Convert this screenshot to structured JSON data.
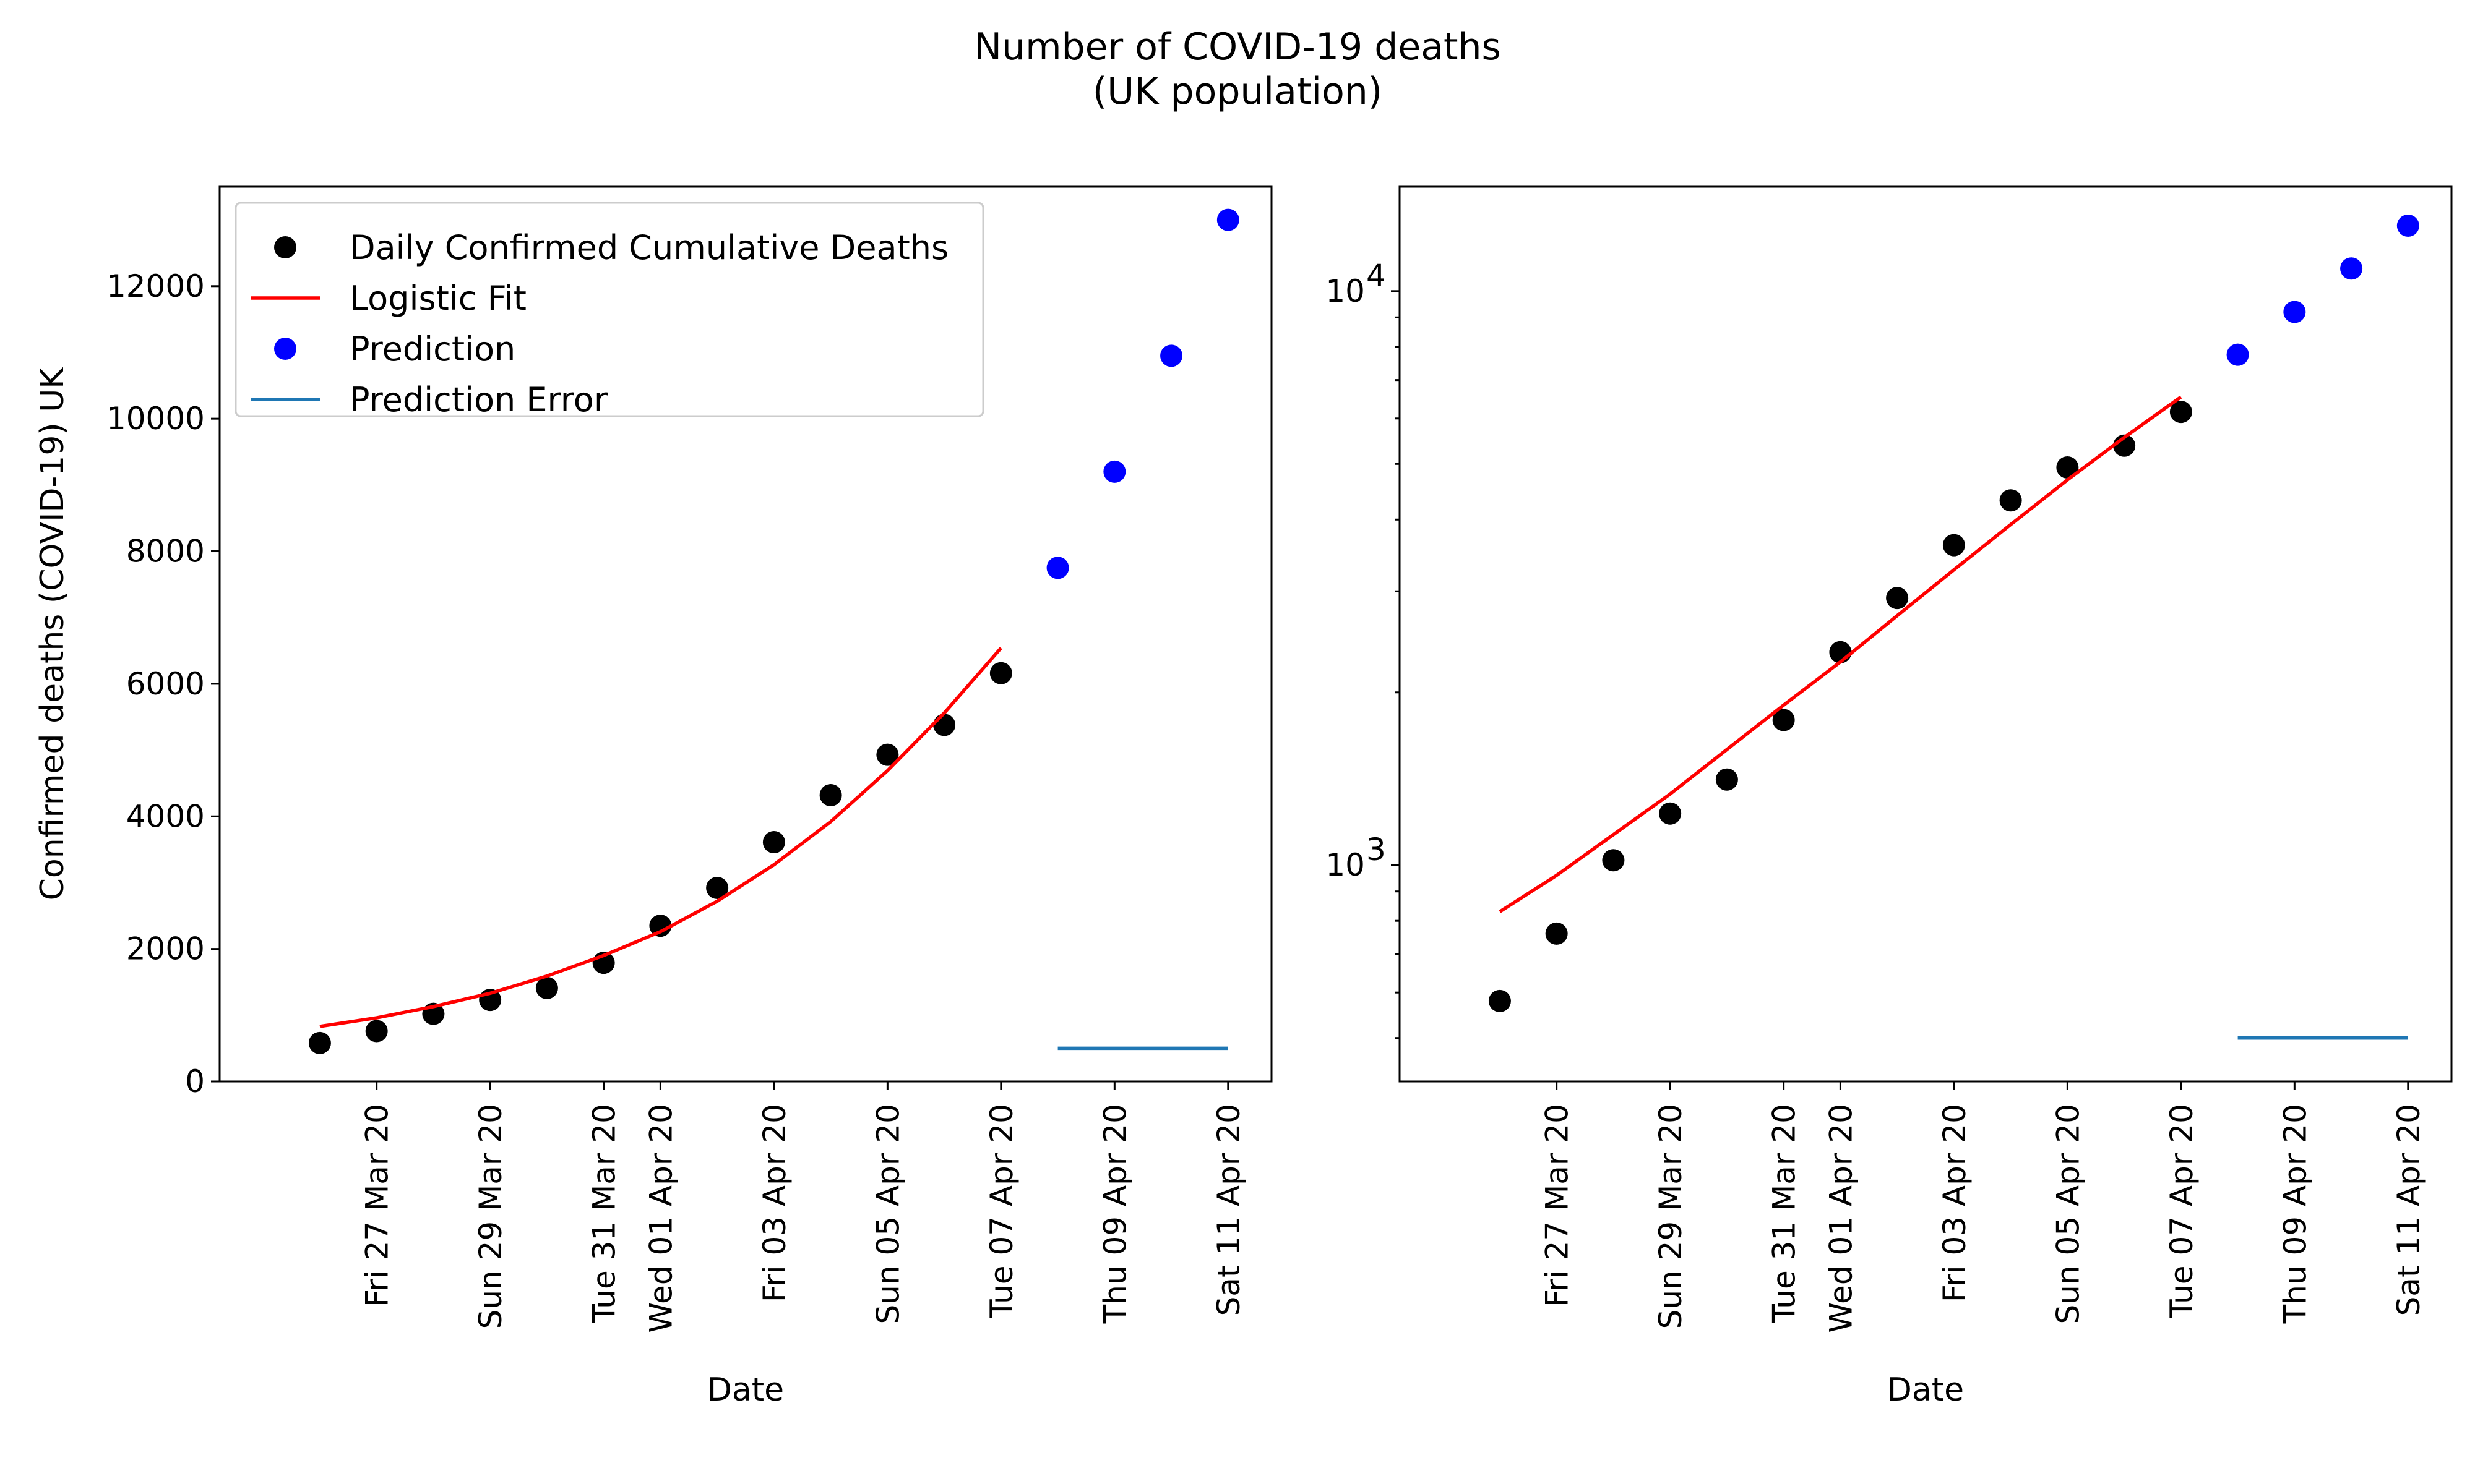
{
  "figure": {
    "title_line1": "Number of COVID-19 deaths",
    "title_line2": "(UK population)"
  },
  "chart_data": [
    {
      "type": "scatter",
      "title": "",
      "xlabel": "Date",
      "ylabel": "Confirmed deaths (COVID-19) UK",
      "yscale": "linear",
      "xlim": [
        "2020-03-25",
        "2020-04-11"
      ],
      "ylim": [
        0,
        13500
      ],
      "x_ticks": [
        "2020-03-27",
        "2020-03-29",
        "2020-03-31",
        "2020-04-01",
        "2020-04-03",
        "2020-04-05",
        "2020-04-07",
        "2020-04-09",
        "2020-04-11"
      ],
      "x_tick_labels": [
        "Fri 27 Mar 20",
        "Sun 29 Mar 20",
        "Tue 31 Mar 20",
        "Wed 01 Apr 20",
        "Fri 03 Apr 20",
        "Sun 05 Apr 20",
        "Tue 07 Apr 20",
        "Thu 09 Apr 20",
        "Sat 11 Apr 20"
      ],
      "y_ticks": [
        0,
        2000,
        4000,
        6000,
        8000,
        10000,
        12000
      ],
      "y_tick_labels": [
        "0",
        "2000",
        "4000",
        "6000",
        "8000",
        "10000",
        "12000"
      ],
      "grid": false,
      "legend": {
        "position": "upper-left",
        "entries": [
          {
            "label": "Daily Confirmed Cumulative Deaths",
            "marker": "dot",
            "color": "#000000"
          },
          {
            "label": "Logistic Fit",
            "marker": "line",
            "color": "#ff0000"
          },
          {
            "label": "Prediction",
            "marker": "dot",
            "color": "#0000ff"
          },
          {
            "label": "Prediction Error",
            "marker": "line",
            "color": "#1f77b4"
          }
        ]
      },
      "series": [
        {
          "name": "Daily Confirmed Cumulative Deaths",
          "kind": "scatter",
          "color": "#000000",
          "points": [
            {
              "x": "2020-03-26",
              "y": 580
            },
            {
              "x": "2020-03-27",
              "y": 760
            },
            {
              "x": "2020-03-28",
              "y": 1020
            },
            {
              "x": "2020-03-29",
              "y": 1230
            },
            {
              "x": "2020-03-30",
              "y": 1410
            },
            {
              "x": "2020-03-31",
              "y": 1790
            },
            {
              "x": "2020-04-01",
              "y": 2350
            },
            {
              "x": "2020-04-02",
              "y": 2920
            },
            {
              "x": "2020-04-03",
              "y": 3610
            },
            {
              "x": "2020-04-04",
              "y": 4320
            },
            {
              "x": "2020-04-05",
              "y": 4930
            },
            {
              "x": "2020-04-06",
              "y": 5380
            },
            {
              "x": "2020-04-07",
              "y": 6160
            }
          ]
        },
        {
          "name": "Logistic Fit",
          "kind": "line",
          "color": "#ff0000",
          "points": [
            {
              "x": "2020-03-26",
              "y": 830
            },
            {
              "x": "2020-03-27",
              "y": 960
            },
            {
              "x": "2020-03-28",
              "y": 1130
            },
            {
              "x": "2020-03-29",
              "y": 1330
            },
            {
              "x": "2020-03-30",
              "y": 1590
            },
            {
              "x": "2020-03-31",
              "y": 1900
            },
            {
              "x": "2020-04-01",
              "y": 2260
            },
            {
              "x": "2020-04-02",
              "y": 2720
            },
            {
              "x": "2020-04-03",
              "y": 3270
            },
            {
              "x": "2020-04-04",
              "y": 3920
            },
            {
              "x": "2020-04-05",
              "y": 4690
            },
            {
              "x": "2020-04-06",
              "y": 5560
            },
            {
              "x": "2020-04-07",
              "y": 6540
            }
          ]
        },
        {
          "name": "Prediction",
          "kind": "scatter",
          "color": "#0000ff",
          "points": [
            {
              "x": "2020-04-08",
              "y": 7750
            },
            {
              "x": "2020-04-09",
              "y": 9200
            },
            {
              "x": "2020-04-10",
              "y": 10950
            },
            {
              "x": "2020-04-11",
              "y": 13000
            }
          ]
        },
        {
          "name": "Prediction Error",
          "kind": "line",
          "color": "#1f77b4",
          "points": [
            {
              "x": "2020-04-08",
              "y": 500
            },
            {
              "x": "2020-04-11",
              "y": 500
            }
          ]
        }
      ]
    },
    {
      "type": "scatter",
      "title": "",
      "xlabel": "Date",
      "ylabel": "",
      "yscale": "log",
      "xlim": [
        "2020-03-25",
        "2020-04-11"
      ],
      "ylim": [
        420,
        15200
      ],
      "x_ticks": [
        "2020-03-27",
        "2020-03-29",
        "2020-03-31",
        "2020-04-01",
        "2020-04-03",
        "2020-04-05",
        "2020-04-07",
        "2020-04-09",
        "2020-04-11"
      ],
      "x_tick_labels": [
        "Fri 27 Mar 20",
        "Sun 29 Mar 20",
        "Tue 31 Mar 20",
        "Wed 01 Apr 20",
        "Fri 03 Apr 20",
        "Sun 05 Apr 20",
        "Tue 07 Apr 20",
        "Thu 09 Apr 20",
        "Sat 11 Apr 20"
      ],
      "y_major_ticks": [
        1000,
        10000
      ],
      "y_major_tick_labels": [
        "10",
        "10"
      ],
      "y_major_tick_exponents": [
        "3",
        "4"
      ],
      "y_minor_ticks": [
        500,
        600,
        700,
        800,
        900,
        2000,
        3000,
        4000,
        5000,
        6000,
        7000,
        8000,
        9000
      ],
      "grid": false,
      "series": [
        {
          "name": "Daily Confirmed Cumulative Deaths",
          "kind": "scatter",
          "color": "#000000",
          "points": [
            {
              "x": "2020-03-26",
              "y": 580
            },
            {
              "x": "2020-03-27",
              "y": 760
            },
            {
              "x": "2020-03-28",
              "y": 1020
            },
            {
              "x": "2020-03-29",
              "y": 1230
            },
            {
              "x": "2020-03-30",
              "y": 1410
            },
            {
              "x": "2020-03-31",
              "y": 1790
            },
            {
              "x": "2020-04-01",
              "y": 2350
            },
            {
              "x": "2020-04-02",
              "y": 2920
            },
            {
              "x": "2020-04-03",
              "y": 3610
            },
            {
              "x": "2020-04-04",
              "y": 4320
            },
            {
              "x": "2020-04-05",
              "y": 4930
            },
            {
              "x": "2020-04-06",
              "y": 5380
            },
            {
              "x": "2020-04-07",
              "y": 6160
            }
          ]
        },
        {
          "name": "Logistic Fit",
          "kind": "line",
          "color": "#ff0000",
          "points": [
            {
              "x": "2020-03-26",
              "y": 830
            },
            {
              "x": "2020-03-27",
              "y": 960
            },
            {
              "x": "2020-03-28",
              "y": 1130
            },
            {
              "x": "2020-03-29",
              "y": 1330
            },
            {
              "x": "2020-03-30",
              "y": 1590
            },
            {
              "x": "2020-03-31",
              "y": 1900
            },
            {
              "x": "2020-04-01",
              "y": 2260
            },
            {
              "x": "2020-04-02",
              "y": 2720
            },
            {
              "x": "2020-04-03",
              "y": 3270
            },
            {
              "x": "2020-04-04",
              "y": 3920
            },
            {
              "x": "2020-04-05",
              "y": 4690
            },
            {
              "x": "2020-04-06",
              "y": 5560
            },
            {
              "x": "2020-04-07",
              "y": 6540
            }
          ]
        },
        {
          "name": "Prediction",
          "kind": "scatter",
          "color": "#0000ff",
          "points": [
            {
              "x": "2020-04-08",
              "y": 7750
            },
            {
              "x": "2020-04-09",
              "y": 9200
            },
            {
              "x": "2020-04-10",
              "y": 10950
            },
            {
              "x": "2020-04-11",
              "y": 13000
            }
          ]
        },
        {
          "name": "Prediction Error",
          "kind": "line",
          "color": "#1f77b4",
          "points": [
            {
              "x": "2020-04-08",
              "y": 500
            },
            {
              "x": "2020-04-11",
              "y": 500
            }
          ]
        }
      ]
    }
  ]
}
